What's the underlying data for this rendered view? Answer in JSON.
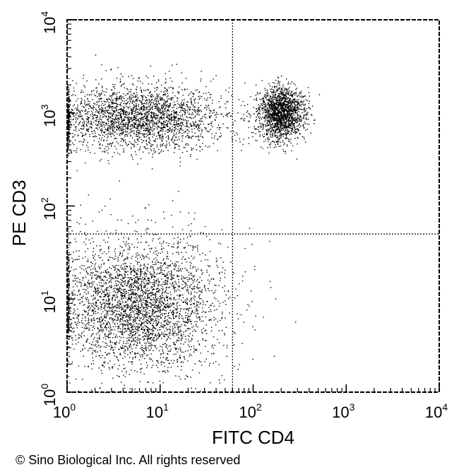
{
  "chart_data": {
    "type": "scatter",
    "title": "",
    "xlabel": "FITC CD4",
    "ylabel": "PE CD3",
    "x_scale": "log",
    "y_scale": "log",
    "xlim": [
      1,
      10000
    ],
    "ylim": [
      1,
      10000
    ],
    "x_ticks": [
      {
        "value": 1,
        "base": "10",
        "exp": "0"
      },
      {
        "value": 10,
        "base": "10",
        "exp": "1"
      },
      {
        "value": 100,
        "base": "10",
        "exp": "2"
      },
      {
        "value": 1000,
        "base": "10",
        "exp": "3"
      },
      {
        "value": 10000,
        "base": "10",
        "exp": "4"
      }
    ],
    "y_ticks": [
      {
        "value": 1,
        "base": "10",
        "exp": "0"
      },
      {
        "value": 10,
        "base": "10",
        "exp": "1"
      },
      {
        "value": 100,
        "base": "10",
        "exp": "2"
      },
      {
        "value": 1000,
        "base": "10",
        "exp": "3"
      },
      {
        "value": 10000,
        "base": "10",
        "exp": "4"
      }
    ],
    "grid": false,
    "quadrant_gates": {
      "x": 60,
      "y": 50
    },
    "point_color": "#000000",
    "populations": [
      {
        "log_center": [
          0.75,
          2.95
        ],
        "log_spread": [
          0.5,
          0.18
        ],
        "count": 2600
      },
      {
        "log_center": [
          2.3,
          3.0
        ],
        "log_spread": [
          0.12,
          0.14
        ],
        "count": 1800
      },
      {
        "log_center": [
          0.75,
          0.95
        ],
        "log_spread": [
          0.45,
          0.35
        ],
        "count": 3600
      }
    ]
  },
  "footer": "© Sino Biological Inc. All rights reserved"
}
